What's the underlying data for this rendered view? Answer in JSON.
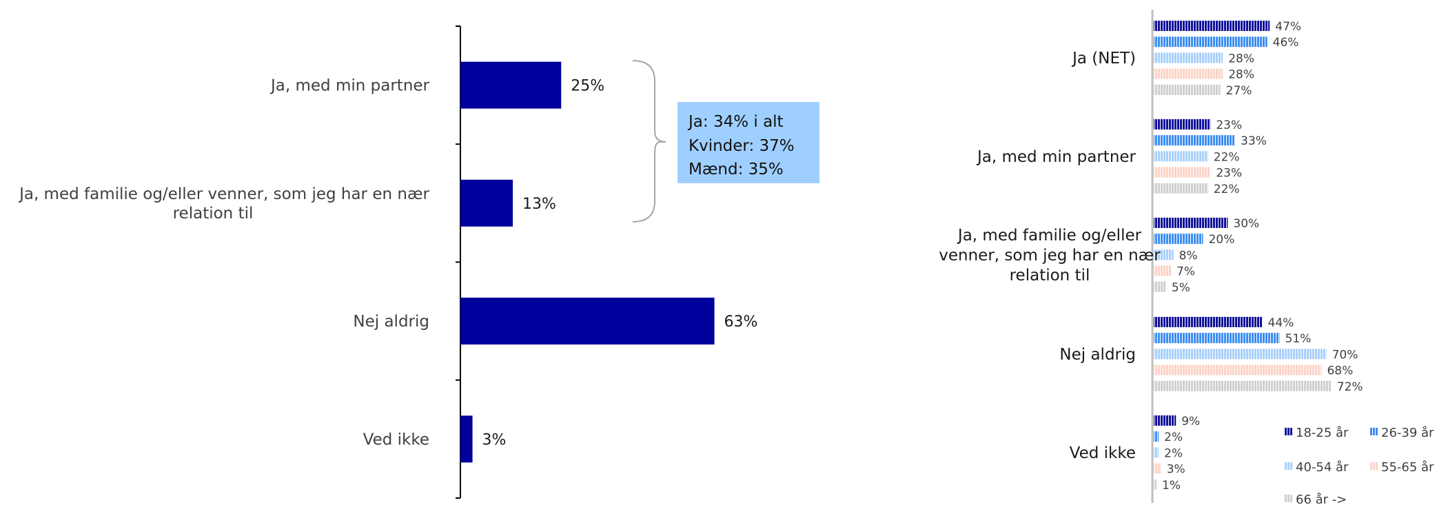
{
  "colors": {
    "total_bar": "#00009c",
    "axis": "#000000",
    "right_axis": "#bfbfbf",
    "callout_bg": "#9fcfff",
    "brace": "#a6a6a6",
    "series": [
      "#0f0f9a",
      "#3d8ef0",
      "#a8d0fb",
      "#fbd3c6",
      "#cfcfcf"
    ]
  },
  "chart_data": [
    {
      "type": "bar",
      "orientation": "horizontal",
      "categories": [
        "Ja, med min partner",
        "Ja, med familie og/eller venner, som jeg har en nær relation til",
        "Nej aldrig",
        "Ved ikke"
      ],
      "values": [
        25,
        13,
        63,
        3
      ],
      "value_labels": [
        "25%",
        "13%",
        "63%",
        "3%"
      ],
      "unit": "%",
      "xlim": [
        0,
        100
      ],
      "grid": false,
      "callout": {
        "lines": [
          "Ja: 34% i alt",
          "Kvinder: 37%",
          "Mænd: 35%"
        ],
        "applies_to": [
          "Ja, med min partner",
          "Ja, med familie og/eller venner, som jeg har en nær relation til"
        ]
      }
    },
    {
      "type": "bar",
      "orientation": "horizontal",
      "categories": [
        "Ja (NET)",
        "Ja, med min partner",
        "Ja, med familie og/eller venner, som jeg har en nær relation til",
        "Nej aldrig",
        "Ved ikke"
      ],
      "series": [
        {
          "name": "18-25 år",
          "values": [
            47,
            23,
            30,
            44,
            9
          ]
        },
        {
          "name": "26-39 år",
          "values": [
            46,
            33,
            20,
            51,
            2
          ]
        },
        {
          "name": "40-54 år",
          "values": [
            28,
            22,
            8,
            70,
            2
          ]
        },
        {
          "name": "55-65 år",
          "values": [
            28,
            23,
            7,
            68,
            3
          ]
        },
        {
          "name": "66 år ->",
          "values": [
            27,
            22,
            5,
            72,
            1
          ]
        }
      ],
      "unit": "%",
      "xlim": [
        0,
        100
      ],
      "grid": false,
      "legend_position": "bottom-right"
    }
  ]
}
